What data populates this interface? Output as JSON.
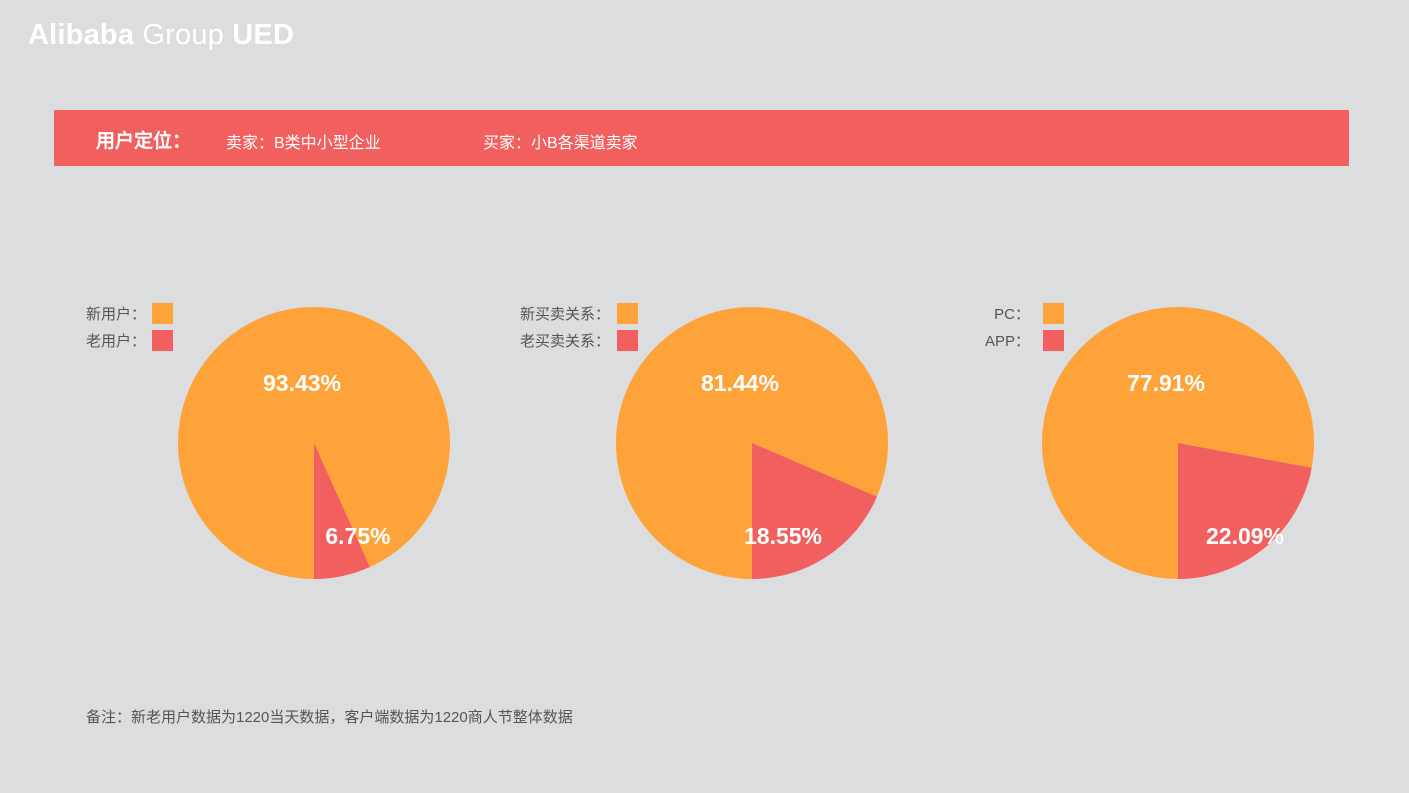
{
  "logo": {
    "part1": "Alibaba",
    "part2": " Group ",
    "part3": "UED"
  },
  "banner": {
    "title": "用户定位：",
    "seller": "卖家：B类中小型企业",
    "buyer": "买家：小B各渠道卖家"
  },
  "colors": {
    "orange": "#fea23a",
    "red": "#f25f5f",
    "background": "#dcdddf",
    "text": "#555555"
  },
  "chart_data": [
    {
      "type": "pie",
      "slices": [
        {
          "legend": "新用户：",
          "value": 93.43,
          "label": "93.43%",
          "color": "#fea23a"
        },
        {
          "legend": "老用户：",
          "value": 6.75,
          "label": "6.75%",
          "color": "#f25f5f"
        }
      ]
    },
    {
      "type": "pie",
      "slices": [
        {
          "legend": "新买卖关系：",
          "value": 81.44,
          "label": "81.44%",
          "color": "#fea23a"
        },
        {
          "legend": "老买卖关系：",
          "value": 18.55,
          "label": "18.55%",
          "color": "#f25f5f"
        }
      ]
    },
    {
      "type": "pie",
      "slices": [
        {
          "legend": "PC：",
          "value": 77.91,
          "label": "77.91%",
          "color": "#fea23a"
        },
        {
          "legend": "APP：",
          "value": 22.09,
          "label": "22.09%",
          "color": "#f25f5f"
        }
      ]
    }
  ],
  "note": "备注：新老用户数据为1220当天数据，客户端数据为1220商人节整体数据"
}
